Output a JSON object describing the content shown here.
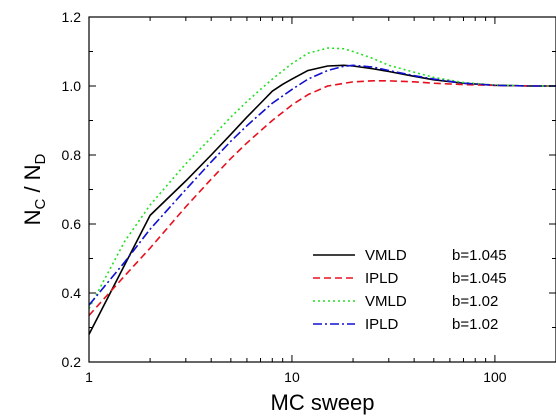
{
  "chart_data": {
    "type": "line",
    "xlabel": "MC sweep",
    "ylabel_main": "N",
    "ylabel_sub1": "C",
    "ylabel_sep": " / N",
    "ylabel_sub2": "D",
    "xscale": "log",
    "xlim": [
      1,
      200
    ],
    "ylim": [
      0.2,
      1.2
    ],
    "grid": false,
    "legend_position": "lower-right",
    "x_ticks": [
      {
        "value": 1,
        "label": "1"
      },
      {
        "value": 10,
        "label": "10"
      },
      {
        "value": 100,
        "label": "100"
      }
    ],
    "y_ticks": [
      {
        "value": 0.2,
        "label": "0.2"
      },
      {
        "value": 0.4,
        "label": "0.4"
      },
      {
        "value": 0.6,
        "label": "0.6"
      },
      {
        "value": 0.8,
        "label": "0.8"
      },
      {
        "value": 1.0,
        "label": "1.0"
      },
      {
        "value": 1.2,
        "label": "1.2"
      }
    ],
    "series": [
      {
        "name": "VMLD",
        "param": "b=1.045",
        "color": "#000000",
        "dash": "solid",
        "x": [
          1,
          2,
          3,
          4,
          5,
          6,
          7,
          8,
          9,
          10,
          12,
          15,
          18,
          20,
          25,
          30,
          40,
          50,
          70,
          100,
          150,
          200
        ],
        "y": [
          0.28,
          0.625,
          0.725,
          0.8,
          0.86,
          0.91,
          0.95,
          0.985,
          1.005,
          1.02,
          1.045,
          1.058,
          1.06,
          1.058,
          1.05,
          1.042,
          1.028,
          1.018,
          1.008,
          1.002,
          1.0,
          1.0
        ]
      },
      {
        "name": "IPLD",
        "param": "b=1.045",
        "color": "#e8101e",
        "dash": "dashed",
        "x": [
          1,
          1.5,
          2,
          3,
          4,
          5,
          6,
          7,
          8,
          10,
          12,
          15,
          20,
          25,
          30,
          40,
          50,
          70,
          100,
          150,
          200
        ],
        "y": [
          0.335,
          0.45,
          0.53,
          0.65,
          0.73,
          0.79,
          0.835,
          0.87,
          0.9,
          0.945,
          0.975,
          1.0,
          1.012,
          1.015,
          1.015,
          1.012,
          1.008,
          1.004,
          1.002,
          1.0,
          1.0
        ]
      },
      {
        "name": "VMLD",
        "param": "b=1.02",
        "color": "#22e022",
        "dash": "dotted",
        "x": [
          1,
          1.5,
          2,
          3,
          4,
          5,
          6,
          7,
          8,
          10,
          12,
          15,
          18,
          20,
          25,
          30,
          40,
          50,
          70,
          100,
          150,
          200
        ],
        "y": [
          0.355,
          0.55,
          0.655,
          0.775,
          0.85,
          0.91,
          0.955,
          0.99,
          1.02,
          1.065,
          1.095,
          1.11,
          1.108,
          1.1,
          1.08,
          1.06,
          1.04,
          1.025,
          1.01,
          1.003,
          1.0,
          1.0
        ]
      },
      {
        "name": "IPLD",
        "param": "b=1.02",
        "color": "#1010d0",
        "dash": "dashdot",
        "x": [
          1,
          1.5,
          2,
          3,
          4,
          5,
          6,
          7,
          8,
          10,
          12,
          15,
          18,
          20,
          25,
          30,
          40,
          50,
          70,
          100,
          150,
          200
        ],
        "y": [
          0.365,
          0.49,
          0.585,
          0.7,
          0.78,
          0.84,
          0.885,
          0.92,
          0.95,
          0.99,
          1.02,
          1.045,
          1.057,
          1.06,
          1.055,
          1.045,
          1.03,
          1.02,
          1.008,
          1.002,
          1.0,
          1.0
        ]
      }
    ]
  }
}
